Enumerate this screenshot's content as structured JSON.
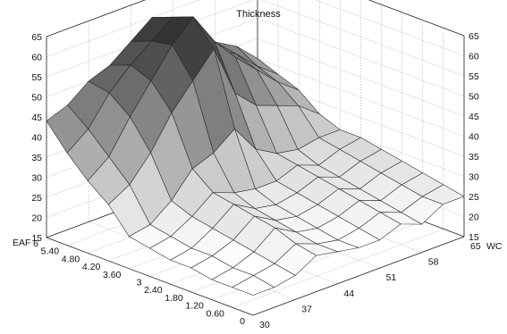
{
  "chart_data": {
    "type": "surface3d",
    "title": "Thickness",
    "xlabel": "EAF",
    "ylabel": "WC",
    "zlabel": "",
    "x_ticks": [
      "0",
      "0.60",
      "1.20",
      "1.80",
      "2.40",
      "3",
      "3.60",
      "4.20",
      "4.80",
      "5.40",
      "6"
    ],
    "y_ticks": [
      "30",
      "37",
      "44",
      "51",
      "58",
      "65"
    ],
    "z_ticks": [
      "15",
      "20",
      "25",
      "30",
      "35",
      "40",
      "45",
      "50",
      "55",
      "60",
      "65"
    ],
    "xlim": [
      0,
      6
    ],
    "ylim": [
      30,
      65
    ],
    "zlim": [
      15,
      65
    ],
    "grid": true,
    "colormap": "gray",
    "x": [
      0,
      0.6,
      1.2,
      1.8,
      2.4,
      3,
      3.6,
      4.2,
      4.8,
      5.4,
      6
    ],
    "y": [
      30,
      33.5,
      37,
      40.5,
      44,
      47.5,
      51,
      54.5,
      58,
      61.5,
      65
    ],
    "z": [
      [
        20,
        20,
        21,
        24,
        23,
        22,
        22,
        24,
        22,
        25,
        25
      ],
      [
        20,
        21,
        22,
        25,
        23,
        22,
        23,
        25,
        23,
        25,
        26
      ],
      [
        20,
        21,
        23,
        27,
        24,
        23,
        24,
        26,
        24,
        26,
        27
      ],
      [
        21,
        22,
        24,
        28,
        25,
        24,
        25,
        27,
        25,
        27,
        28
      ],
      [
        21,
        22,
        25,
        29,
        26,
        25,
        26,
        28,
        26,
        28,
        29
      ],
      [
        22,
        23,
        26,
        30,
        28,
        27,
        27,
        29,
        27,
        29,
        30
      ],
      [
        23,
        24,
        28,
        34,
        36,
        40,
        33,
        30,
        29,
        30,
        30
      ],
      [
        29,
        32,
        38,
        46,
        52,
        58,
        45,
        40,
        38,
        36,
        32
      ],
      [
        33,
        37,
        45,
        52,
        59,
        64,
        56,
        50,
        45,
        40,
        36
      ],
      [
        38,
        42,
        49,
        54,
        58,
        62,
        56,
        50,
        47,
        42,
        38
      ],
      [
        44,
        46,
        50,
        52,
        56,
        60,
        55,
        50,
        48,
        45,
        40
      ]
    ]
  }
}
